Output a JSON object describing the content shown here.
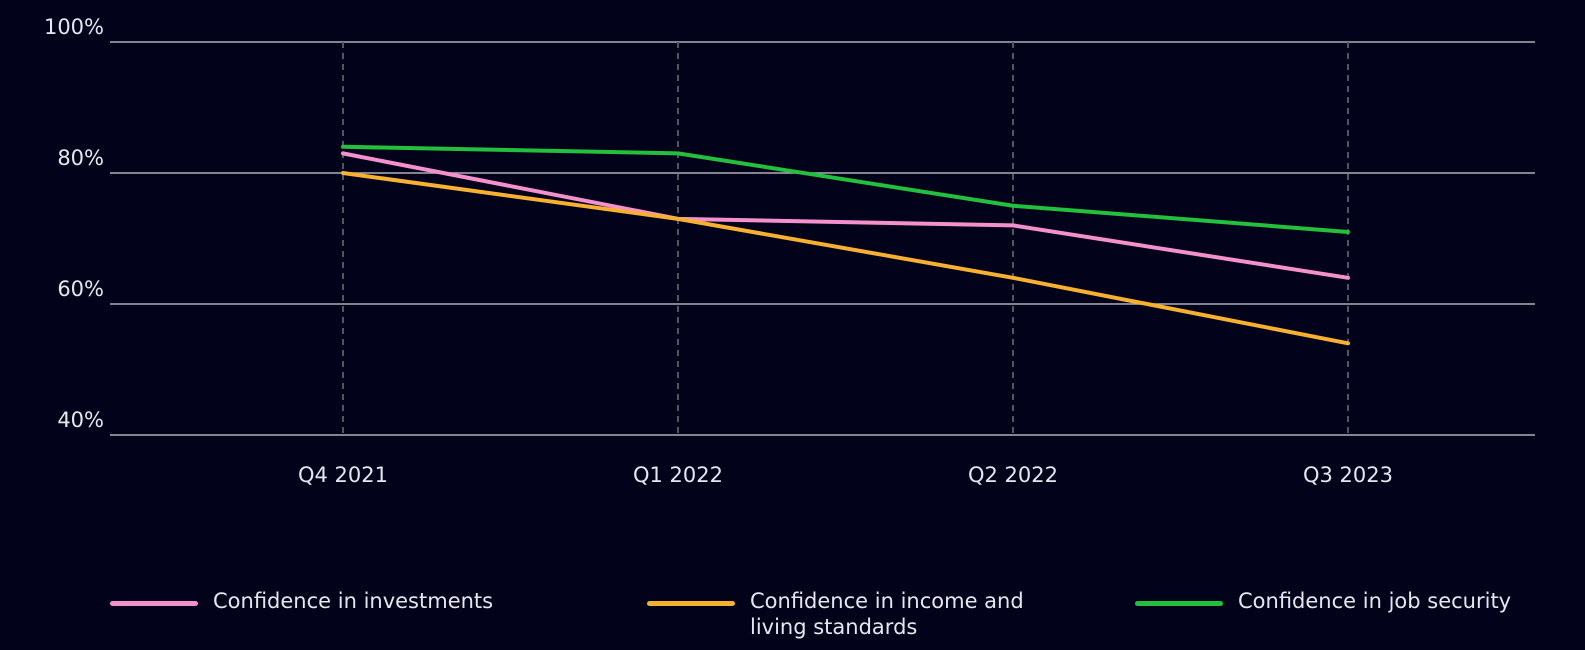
{
  "chart_data": {
    "type": "line",
    "categories": [
      "Q4 2021",
      "Q1 2022",
      "Q2 2022",
      "Q3 2023"
    ],
    "series": [
      {
        "name": "Confidence in investments",
        "color": "#f590cf",
        "values": [
          83,
          73,
          72,
          64
        ]
      },
      {
        "name": "Confidence in income and living standards",
        "color": "#f7b030",
        "values": [
          80,
          73,
          64,
          54
        ]
      },
      {
        "name": "Confidence in job security",
        "color": "#22c03c",
        "values": [
          84,
          83,
          75,
          71
        ]
      }
    ],
    "ylim": [
      40,
      100
    ],
    "yticks": [
      {
        "value": 40,
        "label": "40%"
      },
      {
        "value": 60,
        "label": "60%"
      },
      {
        "value": 80,
        "label": "80%"
      },
      {
        "value": 100,
        "label": "100%"
      }
    ],
    "grid": true,
    "legend": "bottom"
  }
}
